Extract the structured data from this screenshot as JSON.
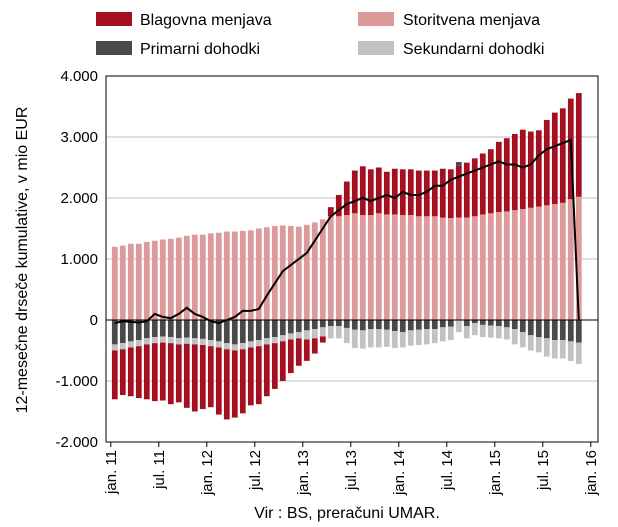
{
  "chart_data": {
    "type": "bar",
    "stacked": true,
    "title": "",
    "ylabel": "12-mesečne drseče kumulative, v mio EUR",
    "xlabel": "",
    "source": "Vir : BS, preračuni  UMAR.",
    "ylim": [
      -2000,
      4000
    ],
    "yticks": [
      -2000,
      -1000,
      0,
      1000,
      2000,
      3000,
      4000
    ],
    "ytick_labels": [
      "-2.000",
      "-1.000",
      "0",
      "1.000",
      "2.000",
      "3.000",
      "4.000"
    ],
    "xtick_labels": [
      {
        "label": "jan. 11",
        "index": 0
      },
      {
        "label": "jul. 11",
        "index": 6
      },
      {
        "label": "jan. 12",
        "index": 12
      },
      {
        "label": "jul. 12",
        "index": 18
      },
      {
        "label": "jan. 13",
        "index": 24
      },
      {
        "label": "jul. 13",
        "index": 30
      },
      {
        "label": "jan. 14",
        "index": 36
      },
      {
        "label": "jul. 14",
        "index": 42
      },
      {
        "label": "jan. 15",
        "index": 48
      },
      {
        "label": "jul. 15",
        "index": 54
      },
      {
        "label": "jan. 16",
        "index": 60
      }
    ],
    "grid": "horizontal",
    "legend_position": "top",
    "months": 59,
    "series": [
      {
        "name": "Blagovna menjava",
        "kind": "bar",
        "color": "#a50f22",
        "values": [
          -800,
          -750,
          -800,
          -850,
          -900,
          -950,
          -950,
          -1000,
          -950,
          -1050,
          -1100,
          -1050,
          -1000,
          -1100,
          -1150,
          -1100,
          -1050,
          -950,
          -950,
          -850,
          -750,
          -650,
          -550,
          -450,
          -350,
          -250,
          -100,
          150,
          350,
          550,
          700,
          800,
          750,
          750,
          700,
          750,
          750,
          750,
          750,
          750,
          750,
          800,
          800,
          850,
          900,
          950,
          1000,
          1050,
          1150,
          1200,
          1250,
          1300,
          1250,
          1250,
          1400,
          1500,
          1550,
          1650,
          1700
        ]
      },
      {
        "name": "Storitvena menjava",
        "kind": "bar",
        "color": "#de9a9a",
        "values": [
          1200,
          1220,
          1250,
          1250,
          1280,
          1300,
          1320,
          1330,
          1350,
          1380,
          1400,
          1400,
          1420,
          1430,
          1450,
          1450,
          1460,
          1470,
          1500,
          1520,
          1540,
          1550,
          1540,
          1530,
          1560,
          1600,
          1650,
          1700,
          1700,
          1720,
          1750,
          1720,
          1720,
          1750,
          1730,
          1730,
          1720,
          1720,
          1700,
          1700,
          1700,
          1680,
          1670,
          1680,
          1680,
          1700,
          1730,
          1750,
          1770,
          1780,
          1800,
          1820,
          1840,
          1860,
          1880,
          1900,
          1920,
          1980,
          2020
        ]
      },
      {
        "name": "Primarni dohodki",
        "kind": "bar",
        "color": "#4a4a4a",
        "values": [
          -400,
          -380,
          -350,
          -330,
          -300,
          -280,
          -270,
          -280,
          -300,
          -290,
          -300,
          -310,
          -330,
          -350,
          -380,
          -400,
          -380,
          -350,
          -330,
          -300,
          -280,
          -250,
          -220,
          -200,
          -170,
          -150,
          -120,
          -100,
          -100,
          -130,
          -160,
          -170,
          -150,
          -150,
          -160,
          -180,
          -200,
          -170,
          -160,
          -150,
          -150,
          -120,
          -110,
          60,
          -100,
          -50,
          -80,
          -90,
          -100,
          -120,
          -150,
          -200,
          -250,
          -280,
          -300,
          -330,
          -330,
          -350,
          -370
        ]
      },
      {
        "name": "Sekundarni dohodki",
        "kind": "bar",
        "color": "#c2c2c2",
        "values": [
          -100,
          -100,
          -100,
          -100,
          -100,
          -100,
          -100,
          -100,
          -100,
          -100,
          -100,
          -100,
          -100,
          -100,
          -100,
          -100,
          -100,
          -100,
          -100,
          -100,
          -100,
          -100,
          -100,
          -100,
          -150,
          -150,
          -150,
          -200,
          -200,
          -250,
          -300,
          -300,
          -300,
          -300,
          -280,
          -280,
          -250,
          -250,
          -250,
          -250,
          -230,
          -230,
          -220,
          -200,
          -200,
          -200,
          -200,
          -200,
          -200,
          -200,
          -250,
          -250,
          -250,
          -250,
          -300,
          -300,
          -300,
          -320,
          -350
        ]
      },
      {
        "name": "",
        "kind": "line",
        "color": "#000000",
        "values": [
          -50,
          -20,
          -30,
          -40,
          -20,
          100,
          50,
          30,
          100,
          200,
          100,
          50,
          -20,
          -50,
          0,
          50,
          150,
          150,
          180,
          400,
          600,
          800,
          900,
          1000,
          1100,
          1300,
          1500,
          1700,
          1800,
          1900,
          1950,
          2000,
          1950,
          2000,
          2050,
          2000,
          2100,
          2050,
          2050,
          2100,
          2200,
          2200,
          2300,
          2350,
          2400,
          2450,
          2500,
          2550,
          2600,
          2550,
          2550,
          2500,
          2550,
          2700,
          2800,
          2850,
          2900,
          2950,
          0
        ]
      }
    ]
  }
}
